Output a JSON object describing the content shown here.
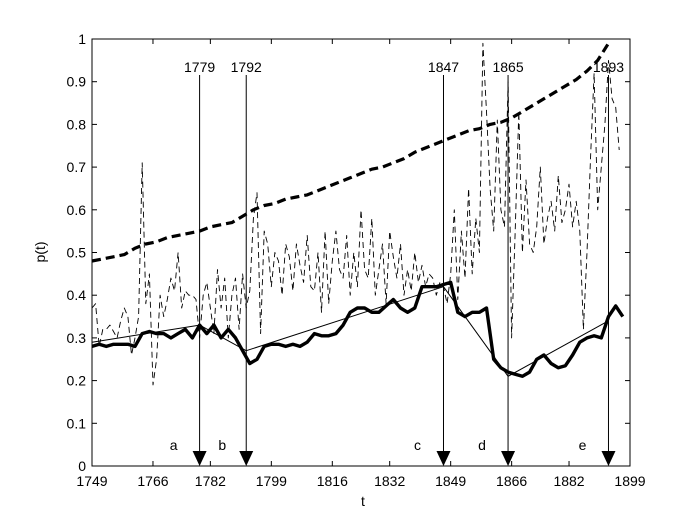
{
  "chart_data": {
    "type": "line",
    "xlabel": "t",
    "ylabel": "p(t)",
    "xlim": [
      1749,
      1899
    ],
    "ylim": [
      0,
      1
    ],
    "xticks": [
      1749,
      1766,
      1782,
      1799,
      1816,
      1832,
      1849,
      1866,
      1882,
      1899
    ],
    "yticks": [
      0,
      0.1,
      0.2,
      0.3,
      0.4,
      0.5,
      0.6,
      0.7,
      0.8,
      0.9,
      1
    ],
    "grid": false,
    "series": [
      {
        "style": "thick-dashed",
        "x": [
          1749,
          1752,
          1755,
          1758,
          1761,
          1764,
          1767,
          1770,
          1773,
          1776,
          1779,
          1782,
          1785,
          1788,
          1791,
          1794,
          1797,
          1800,
          1803,
          1806,
          1809,
          1812,
          1815,
          1818,
          1821,
          1824,
          1827,
          1830,
          1833,
          1836,
          1839,
          1842,
          1845,
          1848,
          1851,
          1854,
          1857,
          1860,
          1863,
          1866,
          1869,
          1872,
          1875,
          1878,
          1881,
          1884,
          1887,
          1890,
          1893
        ],
        "y": [
          0.48,
          0.485,
          0.49,
          0.495,
          0.51,
          0.52,
          0.525,
          0.535,
          0.54,
          0.545,
          0.55,
          0.56,
          0.565,
          0.57,
          0.585,
          0.6,
          0.61,
          0.615,
          0.625,
          0.63,
          0.635,
          0.645,
          0.655,
          0.665,
          0.675,
          0.685,
          0.695,
          0.7,
          0.71,
          0.72,
          0.735,
          0.745,
          0.755,
          0.765,
          0.775,
          0.785,
          0.79,
          0.8,
          0.805,
          0.815,
          0.83,
          0.845,
          0.86,
          0.875,
          0.89,
          0.905,
          0.925,
          0.95,
          0.99
        ]
      },
      {
        "style": "thin-dashed",
        "x": [
          1749,
          1750,
          1751,
          1752,
          1753,
          1754,
          1756,
          1757,
          1758,
          1759,
          1760,
          1761,
          1762,
          1763,
          1764,
          1765,
          1766,
          1767,
          1768,
          1769,
          1770,
          1771,
          1772,
          1773,
          1774,
          1775,
          1776,
          1777,
          1778,
          1779,
          1780,
          1781,
          1782,
          1783,
          1784,
          1785,
          1786,
          1787,
          1788,
          1789,
          1790,
          1791,
          1792,
          1793,
          1794,
          1795,
          1796,
          1797,
          1798,
          1799,
          1800,
          1801,
          1802,
          1803,
          1804,
          1805,
          1806,
          1807,
          1808,
          1809,
          1810,
          1811,
          1812,
          1813,
          1814,
          1815,
          1816,
          1817,
          1818,
          1819,
          1820,
          1821,
          1822,
          1823,
          1824,
          1825,
          1826,
          1827,
          1828,
          1829,
          1830,
          1831,
          1832,
          1833,
          1834,
          1835,
          1836,
          1837,
          1838,
          1839,
          1840,
          1841,
          1842,
          1843,
          1844,
          1845,
          1846,
          1847,
          1848,
          1849,
          1850,
          1851,
          1852,
          1853,
          1854,
          1855,
          1856,
          1857,
          1858,
          1859,
          1860,
          1861,
          1862,
          1863,
          1864,
          1865,
          1866,
          1867,
          1868,
          1869,
          1870,
          1871,
          1872,
          1873,
          1874,
          1875,
          1876,
          1877,
          1878,
          1879,
          1880,
          1881,
          1882,
          1883,
          1884,
          1885,
          1886,
          1887,
          1888,
          1889,
          1890,
          1891,
          1892,
          1893,
          1894,
          1895,
          1896
        ],
        "y": [
          0.37,
          0.38,
          0.28,
          0.32,
          0.32,
          0.33,
          0.3,
          0.34,
          0.37,
          0.35,
          0.26,
          0.3,
          0.35,
          0.71,
          0.38,
          0.45,
          0.19,
          0.25,
          0.4,
          0.35,
          0.39,
          0.44,
          0.41,
          0.5,
          0.37,
          0.41,
          0.4,
          0.4,
          0.39,
          0.3,
          0.4,
          0.43,
          0.37,
          0.31,
          0.46,
          0.37,
          0.44,
          0.3,
          0.4,
          0.44,
          0.32,
          0.45,
          0.37,
          0.41,
          0.58,
          0.64,
          0.31,
          0.55,
          0.52,
          0.42,
          0.5,
          0.48,
          0.4,
          0.52,
          0.49,
          0.41,
          0.52,
          0.47,
          0.43,
          0.54,
          0.42,
          0.41,
          0.5,
          0.36,
          0.55,
          0.38,
          0.48,
          0.55,
          0.46,
          0.44,
          0.54,
          0.4,
          0.5,
          0.42,
          0.6,
          0.46,
          0.44,
          0.58,
          0.4,
          0.46,
          0.52,
          0.38,
          0.55,
          0.49,
          0.44,
          0.52,
          0.4,
          0.46,
          0.41,
          0.5,
          0.43,
          0.47,
          0.42,
          0.45,
          0.44,
          0.4,
          0.43,
          0.42,
          0.38,
          0.45,
          0.6,
          0.39,
          0.55,
          0.44,
          0.65,
          0.45,
          0.58,
          0.5,
          0.99,
          0.83,
          0.65,
          0.55,
          0.81,
          0.6,
          0.56,
          0.9,
          0.3,
          0.55,
          0.83,
          0.5,
          0.67,
          0.52,
          0.5,
          0.56,
          0.7,
          0.52,
          0.58,
          0.62,
          0.55,
          0.68,
          0.57,
          0.6,
          0.66,
          0.56,
          0.62,
          0.55,
          0.32,
          0.5,
          0.72,
          0.92,
          0.6,
          0.7,
          0.8,
          0.95,
          0.86,
          0.84,
          0.74
        ]
      },
      {
        "style": "thick-solid",
        "x": [
          1749,
          1751,
          1753,
          1755,
          1757,
          1759,
          1761,
          1763,
          1765,
          1767,
          1769,
          1771,
          1773,
          1775,
          1777,
          1779,
          1781,
          1783,
          1785,
          1787,
          1789,
          1791,
          1793,
          1795,
          1797,
          1799,
          1801,
          1803,
          1805,
          1807,
          1809,
          1811,
          1813,
          1815,
          1817,
          1819,
          1821,
          1823,
          1825,
          1827,
          1829,
          1831,
          1833,
          1835,
          1837,
          1839,
          1841,
          1843,
          1845,
          1847,
          1849,
          1851,
          1853,
          1855,
          1857,
          1859,
          1861,
          1863,
          1865,
          1867,
          1869,
          1871,
          1873,
          1875,
          1877,
          1879,
          1881,
          1883,
          1885,
          1887,
          1889,
          1891,
          1893,
          1895,
          1897
        ],
        "y": [
          0.28,
          0.285,
          0.28,
          0.285,
          0.285,
          0.285,
          0.28,
          0.31,
          0.315,
          0.31,
          0.31,
          0.3,
          0.31,
          0.32,
          0.3,
          0.33,
          0.31,
          0.33,
          0.3,
          0.32,
          0.3,
          0.27,
          0.24,
          0.25,
          0.28,
          0.285,
          0.285,
          0.28,
          0.285,
          0.28,
          0.29,
          0.31,
          0.305,
          0.305,
          0.31,
          0.33,
          0.36,
          0.37,
          0.37,
          0.36,
          0.36,
          0.375,
          0.39,
          0.37,
          0.36,
          0.37,
          0.42,
          0.42,
          0.42,
          0.425,
          0.43,
          0.36,
          0.35,
          0.36,
          0.36,
          0.37,
          0.25,
          0.23,
          0.22,
          0.215,
          0.21,
          0.22,
          0.25,
          0.26,
          0.24,
          0.23,
          0.235,
          0.26,
          0.29,
          0.3,
          0.305,
          0.3,
          0.35,
          0.375,
          0.35
        ]
      },
      {
        "style": "thin-solid",
        "x": [
          1749,
          1779,
          1792,
          1847,
          1865,
          1893
        ],
        "y": [
          0.29,
          0.33,
          0.27,
          0.42,
          0.21,
          0.34
        ]
      }
    ],
    "events": [
      {
        "year": 1779,
        "label": "1779",
        "letter": "a"
      },
      {
        "year": 1792,
        "label": "1792",
        "letter": "b"
      },
      {
        "year": 1847,
        "label": "1847",
        "letter": "c"
      },
      {
        "year": 1865,
        "label": "1865",
        "letter": "d"
      },
      {
        "year": 1893,
        "label": "1893",
        "letter": "e"
      }
    ]
  }
}
